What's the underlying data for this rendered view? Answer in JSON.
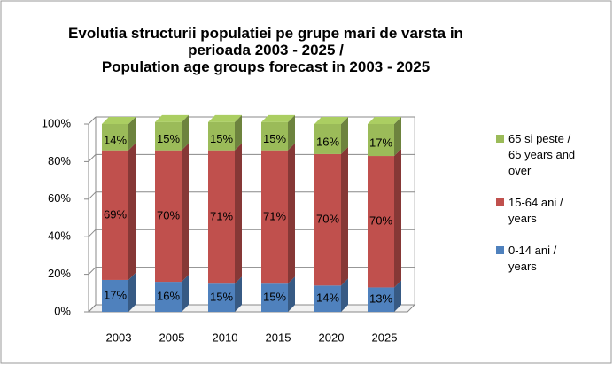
{
  "chart_data": {
    "type": "bar3d_stacked",
    "title": "Evolutia structurii populatiei pe grupe mari de varsta in perioada 2003 - 2025 /",
    "subtitle": "Population age groups forecast in 2003 - 2025",
    "categories": [
      "2003",
      "2005",
      "2010",
      "2015",
      "2020",
      "2025"
    ],
    "series": [
      {
        "name": "0-14 ani / years",
        "color": "#4f81bd",
        "values": [
          17,
          16,
          15,
          15,
          14,
          13
        ],
        "value_labels": [
          "17%",
          "16%",
          "15%",
          "15%",
          "14%",
          "13%"
        ]
      },
      {
        "name": "15-64 ani / years",
        "color": "#c0504d",
        "values": [
          69,
          70,
          71,
          71,
          70,
          70
        ],
        "value_labels": [
          "69%",
          "70%",
          "71%",
          "71%",
          "70%",
          "70%"
        ]
      },
      {
        "name": "65 si peste / 65 years and over",
        "color": "#9bbb59",
        "values": [
          14,
          15,
          15,
          15,
          16,
          17
        ],
        "value_labels": [
          "14%",
          "15%",
          "15%",
          "15%",
          "16%",
          "17%"
        ]
      }
    ],
    "ylim": [
      0,
      100
    ],
    "yticks": [
      {
        "value": 0,
        "label": "0%"
      },
      {
        "value": 20,
        "label": "20%"
      },
      {
        "value": 40,
        "label": "40%"
      },
      {
        "value": 60,
        "label": "60%"
      },
      {
        "value": 80,
        "label": "80%"
      },
      {
        "value": 100,
        "label": "100%"
      }
    ],
    "grid": true
  }
}
